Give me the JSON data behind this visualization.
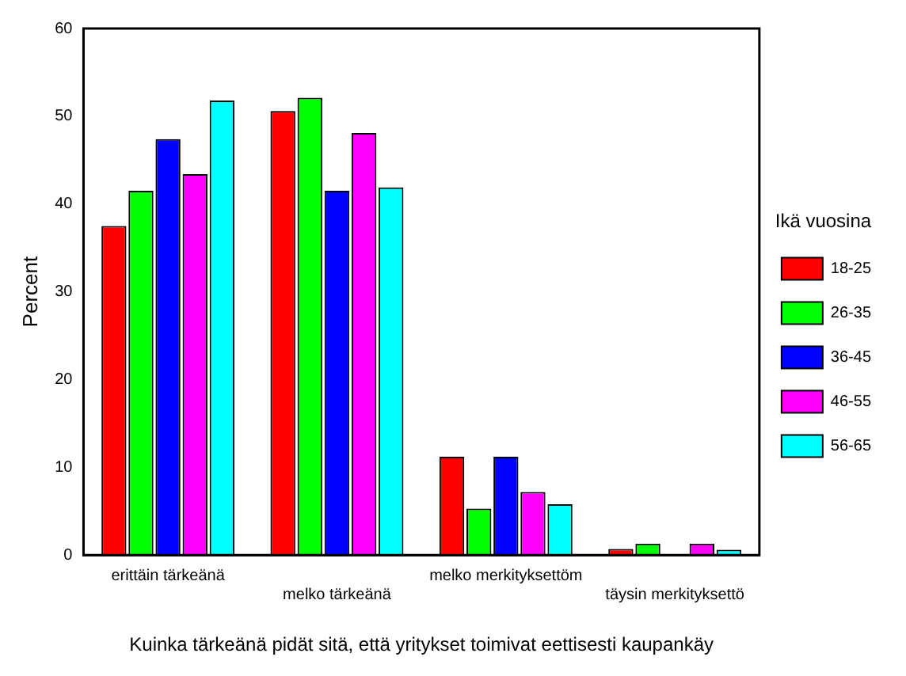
{
  "chart_data": {
    "type": "bar",
    "xlabel": "Kuinka tärkeänä pidät sitä, että yritykset toimivat eettisesti kaupankäy",
    "ylabel": "Percent",
    "legend_title": "Ikä vuosina",
    "legend": "right",
    "grid": false,
    "categories": [
      "erittäin tärkeänä",
      "melko tärkeänä",
      "melko merkityksettöm",
      "täysin merkityksettö"
    ],
    "series": [
      {
        "name": "18-25",
        "color": "#ff0000",
        "values": [
          37.5,
          50.6,
          11.2,
          0.7
        ]
      },
      {
        "name": "26-35",
        "color": "#00ff00",
        "values": [
          41.5,
          52.1,
          5.3,
          1.3
        ]
      },
      {
        "name": "36-45",
        "color": "#0000ff",
        "values": [
          47.4,
          41.5,
          11.2,
          null
        ]
      },
      {
        "name": "46-55",
        "color": "#ff00ff",
        "values": [
          43.4,
          48.1,
          7.2,
          1.3
        ]
      },
      {
        "name": "56-65",
        "color": "#00ffff",
        "values": [
          51.8,
          41.9,
          5.8,
          0.6
        ]
      }
    ],
    "ylim": [
      0,
      60
    ],
    "yticks": [
      0,
      10,
      20,
      30,
      40,
      50,
      60
    ]
  }
}
